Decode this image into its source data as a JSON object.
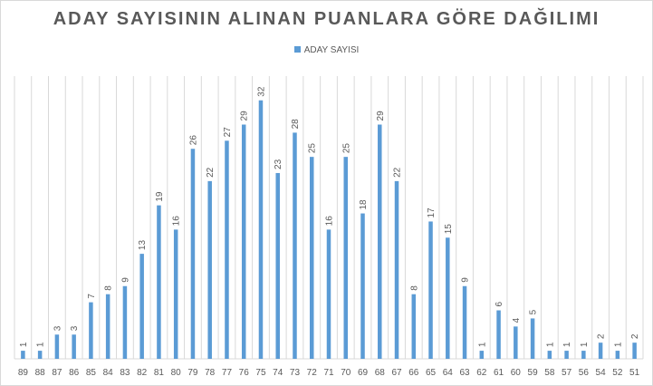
{
  "colors": {
    "series": "#5b9bd5",
    "grid": "#d9d9d9",
    "text": "#595959"
  },
  "chart_data": {
    "type": "bar",
    "title": "ADAY SAYISININ ALINAN PUANLARA GÖRE DAĞILIMI",
    "legend_position": "top",
    "grid": "vertical",
    "ylim": [
      0,
      35
    ],
    "categories": [
      "89",
      "88",
      "87",
      "86",
      "85",
      "84",
      "83",
      "82",
      "81",
      "80",
      "79",
      "78",
      "77",
      "76",
      "75",
      "74",
      "73",
      "72",
      "71",
      "70",
      "69",
      "68",
      "67",
      "66",
      "65",
      "64",
      "63",
      "62",
      "61",
      "60",
      "59",
      "58",
      "57",
      "56",
      "54",
      "52",
      "51"
    ],
    "series": [
      {
        "name": "ADAY SAYISI",
        "values": [
          1,
          1,
          3,
          3,
          7,
          8,
          9,
          13,
          19,
          16,
          26,
          22,
          27,
          29,
          32,
          23,
          28,
          25,
          16,
          25,
          18,
          29,
          22,
          8,
          17,
          15,
          9,
          1,
          6,
          4,
          5,
          1,
          1,
          1,
          2,
          1,
          2
        ]
      }
    ]
  }
}
